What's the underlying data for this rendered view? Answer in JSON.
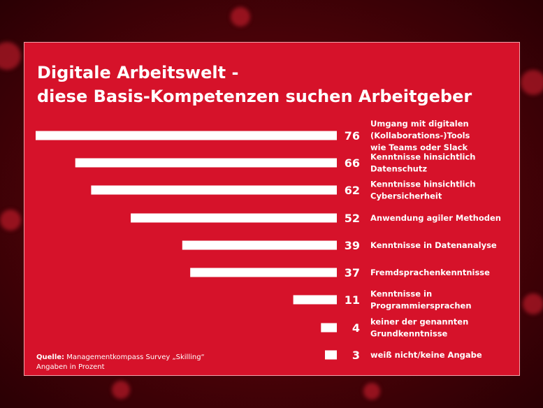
{
  "chart_data": {
    "type": "bar",
    "orientation": "horizontal",
    "title_lines": [
      "Digitale Arbeitswelt -",
      "diese Basis-Kompetenzen suchen Arbeitgeber"
    ],
    "unit": "Angaben in Prozent",
    "categories": [
      [
        "Umgang mit digitalen",
        "(Kollaborations-)Tools",
        "wie Teams oder Slack"
      ],
      [
        "Kenntnisse hinsichtlich",
        "Datenschutz"
      ],
      [
        "Kenntnisse hinsichtlich",
        "Cybersicherheit"
      ],
      [
        "Anwendung agiler Methoden"
      ],
      [
        "Kenntnisse in Datenanalyse"
      ],
      [
        "Fremdsprachenkenntnisse"
      ],
      [
        "Kenntnisse in",
        "Programmiersprachen"
      ],
      [
        "keiner der genannten",
        "Grundkenntnisse"
      ],
      [
        "weiß nicht/keine Angabe"
      ]
    ],
    "values": [
      76,
      66,
      62,
      52,
      39,
      37,
      11,
      4,
      3
    ],
    "xlim": [
      0,
      76
    ],
    "bar_color": "#ffffff",
    "background_color": "#d6122a"
  },
  "source": {
    "label": "Quelle:",
    "text": "Managementkompass Survey „Skilling“",
    "unit_line": "Angaben in Prozent"
  }
}
